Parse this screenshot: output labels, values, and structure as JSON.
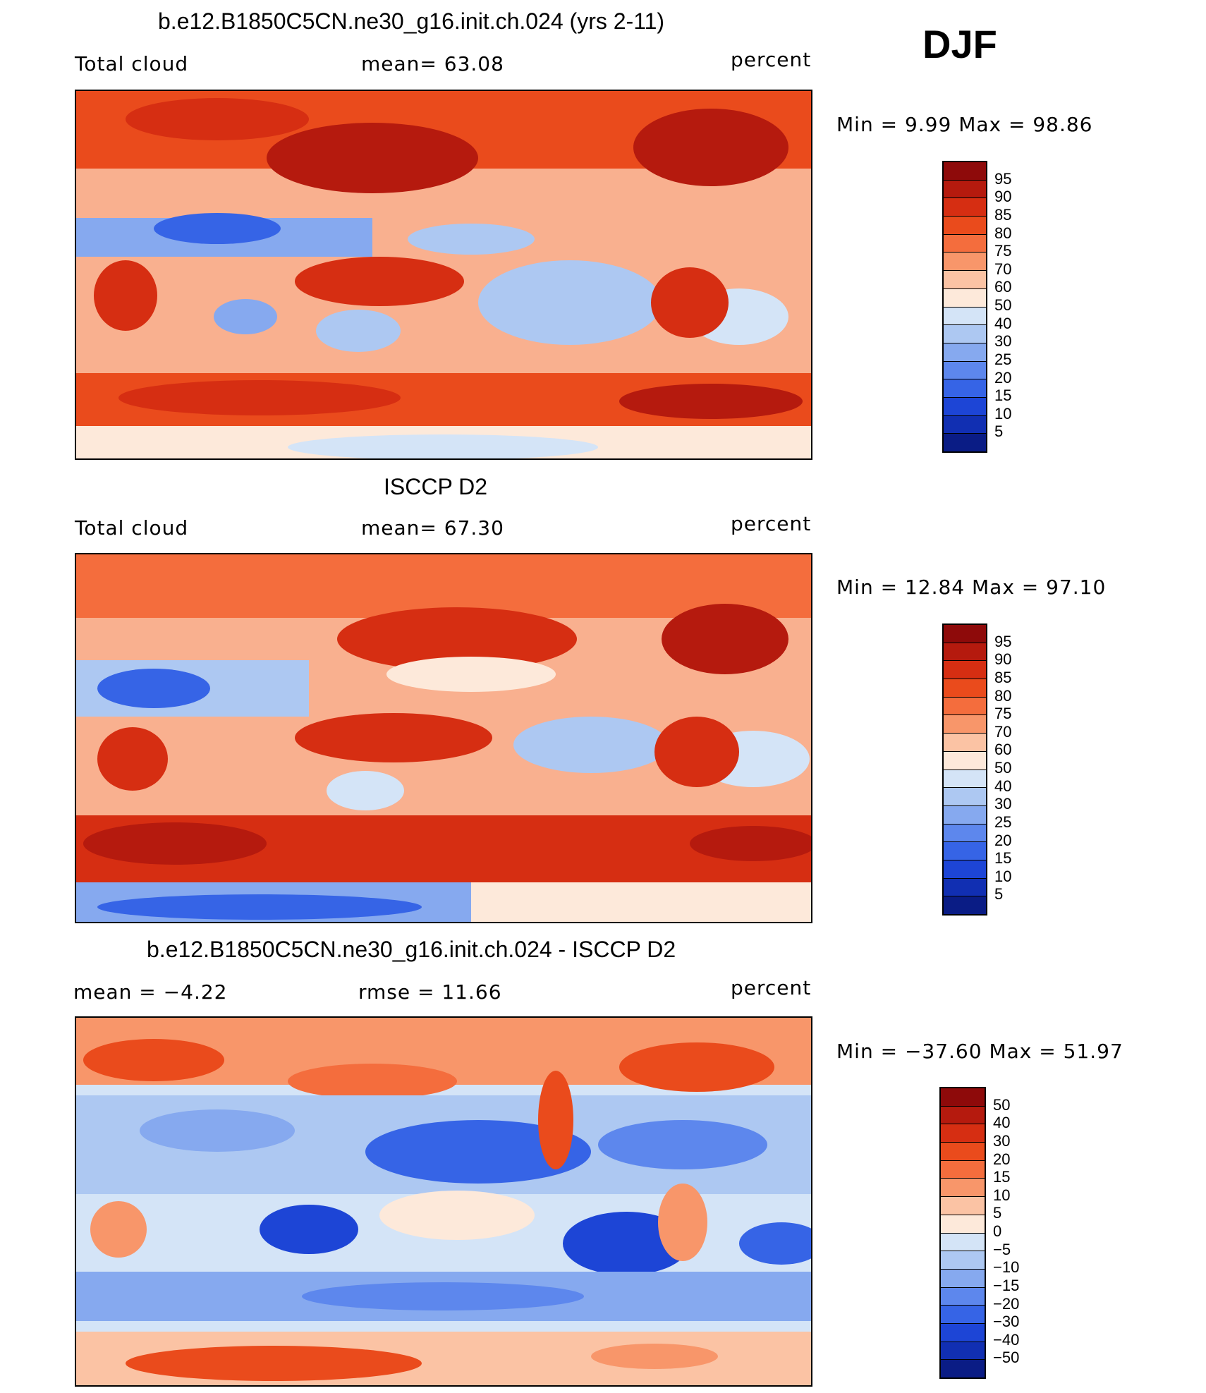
{
  "season": "DJF",
  "panels": [
    {
      "title": "b.e12.B1850C5CN.ne30_g16.init.ch.024 (yrs 2-11)",
      "left_label": "Total cloud",
      "center_label": "mean=   63.08",
      "right_label": "percent",
      "minmax": "Min =    9.99 Max =   98.86",
      "colorbar": {
        "labels": [
          "95",
          "90",
          "85",
          "80",
          "75",
          "70",
          "60",
          "50",
          "40",
          "30",
          "25",
          "20",
          "15",
          "10",
          "5"
        ],
        "colors": [
          "#8e0a0a",
          "#b51a0e",
          "#d62e12",
          "#ea4b1c",
          "#f46d3d",
          "#f8966a",
          "#fbc3a4",
          "#fde9da",
          "#d4e4f7",
          "#adc8f2",
          "#86a9ef",
          "#5d87ed",
          "#3664e6",
          "#1d45d6",
          "#112fb2",
          "#0a1c85"
        ]
      }
    },
    {
      "title": "ISCCP D2",
      "left_label": "Total cloud",
      "center_label": "mean=   67.30",
      "right_label": "percent",
      "minmax": "Min =   12.84 Max =   97.10",
      "colorbar": {
        "labels": [
          "95",
          "90",
          "85",
          "80",
          "75",
          "70",
          "60",
          "50",
          "40",
          "30",
          "25",
          "20",
          "15",
          "10",
          "5"
        ],
        "colors": [
          "#8e0a0a",
          "#b51a0e",
          "#d62e12",
          "#ea4b1c",
          "#f46d3d",
          "#f8966a",
          "#fbc3a4",
          "#fde9da",
          "#d4e4f7",
          "#adc8f2",
          "#86a9ef",
          "#5d87ed",
          "#3664e6",
          "#1d45d6",
          "#112fb2",
          "#0a1c85"
        ]
      }
    },
    {
      "title": "b.e12.B1850C5CN.ne30_g16.init.ch.024 - ISCCP D2",
      "left_label": "mean =   −4.22",
      "center_label": "rmse =   11.66",
      "right_label": "percent",
      "minmax": "Min = −37.60 Max =   51.97",
      "colorbar": {
        "labels": [
          "50",
          "40",
          "30",
          "20",
          "15",
          "10",
          "5",
          "0",
          "−5",
          "−10",
          "−15",
          "−20",
          "−30",
          "−40",
          "−50"
        ],
        "colors": [
          "#8e0a0a",
          "#b51a0e",
          "#d62e12",
          "#ea4b1c",
          "#f46d3d",
          "#f8966a",
          "#fbc3a4",
          "#fde9da",
          "#d4e4f7",
          "#adc8f2",
          "#86a9ef",
          "#5d87ed",
          "#3664e6",
          "#1d45d6",
          "#112fb2",
          "#0a1c85"
        ]
      }
    }
  ]
}
